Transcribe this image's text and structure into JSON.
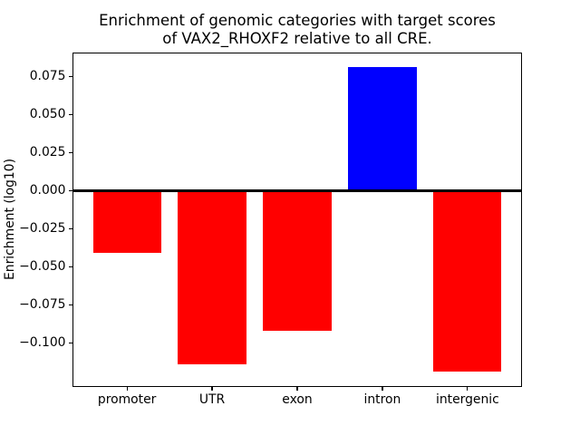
{
  "figure_title": "Enrichment of genomic categories with target scores\nof VAX2_RHOXF2 relative to all CRE.",
  "chart_data": {
    "type": "bar",
    "title": "Enrichment of genomic categories with target scores\nof VAX2_RHOXF2 relative to all CRE.",
    "xlabel": "",
    "ylabel": "Enrichment (log10)",
    "categories": [
      "promoter",
      "UTR",
      "exon",
      "intron",
      "intergenic"
    ],
    "values": [
      -0.041,
      -0.114,
      -0.092,
      0.081,
      -0.119
    ],
    "bar_colors": [
      "#ff0000",
      "#ff0000",
      "#ff0000",
      "#0000ff",
      "#ff0000"
    ],
    "colors": {
      "positive_bar": "#0000ff",
      "negative_bar": "#ff0000",
      "axis": "#000000",
      "background": "#ffffff"
    },
    "ylim": [
      -0.129,
      0.091
    ],
    "yticks": [
      {
        "value": 0.075,
        "label": "0.075"
      },
      {
        "value": 0.05,
        "label": "0.050"
      },
      {
        "value": 0.025,
        "label": "0.025"
      },
      {
        "value": 0.0,
        "label": "0.000"
      },
      {
        "value": -0.025,
        "label": "−0.025"
      },
      {
        "value": -0.05,
        "label": "−0.050"
      },
      {
        "value": -0.075,
        "label": "−0.075"
      },
      {
        "value": -0.1,
        "label": "−0.100"
      }
    ],
    "bar_width": 0.8,
    "zero_line": true,
    "grid": false,
    "legend": null
  }
}
